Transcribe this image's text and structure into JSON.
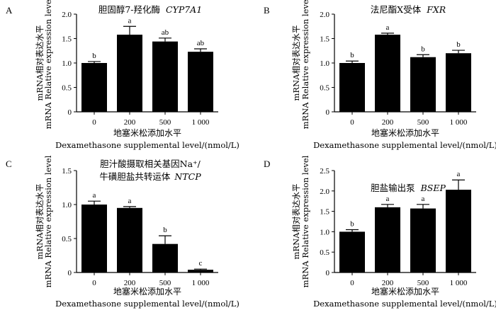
{
  "chart_data": [
    {
      "type": "bar",
      "panel": "A",
      "title_zh": "胆固醇7-羟化酶",
      "title_gene": "CYP7A1",
      "title_line2": "",
      "ylabel_zh": "mRNA相对表达水平",
      "ylabel_en": "mRNA Relative expression level",
      "xlabel_zh": "地塞米松添加水平",
      "xlabel_en": "Dexamethasone supplemental level/(nmol/L)",
      "categories": [
        "0",
        "200",
        "500",
        "1 000"
      ],
      "values": [
        1.0,
        1.58,
        1.44,
        1.23
      ],
      "errors": [
        0.03,
        0.17,
        0.07,
        0.06
      ],
      "significance": [
        "b",
        "a",
        "ab",
        "ab"
      ],
      "ylim": [
        0,
        2.0
      ],
      "yticks": [
        "0",
        "0.5",
        "1.0",
        "1.5",
        "2.0"
      ]
    },
    {
      "type": "bar",
      "panel": "B",
      "title_zh": "法尼酯X受体",
      "title_gene": "FXR",
      "title_line2": "",
      "ylabel_zh": "mRNA相对表达水平",
      "ylabel_en": "mRNA Relative expression level",
      "xlabel_zh": "地塞米松添加水平",
      "xlabel_en": "Dexamethasone supplemental level/(nmol/L)",
      "categories": [
        "0",
        "200",
        "500",
        "1 000"
      ],
      "values": [
        1.0,
        1.58,
        1.12,
        1.2
      ],
      "errors": [
        0.04,
        0.03,
        0.05,
        0.06
      ],
      "significance": [
        "b",
        "a",
        "b",
        "b"
      ],
      "ylim": [
        0,
        2.0
      ],
      "yticks": [
        "0",
        "0.5",
        "1.0",
        "1.5",
        "2.0"
      ]
    },
    {
      "type": "bar",
      "panel": "C",
      "title_zh": "胆汁酸摄取相关基因Na⁺/",
      "title_gene": "NTCP",
      "title_line2": "牛磺胆盐共转运体",
      "ylabel_zh": "mRNA相对表达水平",
      "ylabel_en": "mRNA Relative expression level",
      "xlabel_zh": "地塞米松添加水平",
      "xlabel_en": "Dexamethasone supplemental level/(nmol/L)",
      "categories": [
        "0",
        "200",
        "500",
        "1 000"
      ],
      "values": [
        1.0,
        0.95,
        0.42,
        0.04
      ],
      "errors": [
        0.05,
        0.02,
        0.12,
        0.01
      ],
      "significance": [
        "a",
        "a",
        "b",
        "c"
      ],
      "ylim": [
        0,
        1.5
      ],
      "yticks": [
        "0",
        "0.5",
        "1.0",
        "1.5"
      ]
    },
    {
      "type": "bar",
      "panel": "D",
      "title_zh": "胆盐输出泵",
      "title_gene": "BSEP",
      "title_line2": "",
      "ylabel_zh": "mRNA相对表达水平",
      "ylabel_en": "mRNA Relative expression level",
      "xlabel_zh": "地塞米松添加水平",
      "xlabel_en": "Dexamethasone supplemental level/(nmol/L)",
      "categories": [
        "0",
        "200",
        "500",
        "1 000"
      ],
      "values": [
        1.0,
        1.6,
        1.57,
        2.03
      ],
      "errors": [
        0.05,
        0.07,
        0.1,
        0.24
      ],
      "significance": [
        "b",
        "a",
        "a",
        "a"
      ],
      "ylim": [
        0,
        2.5
      ],
      "yticks": [
        "0",
        "0.5",
        "1.0",
        "1.5",
        "2.0",
        "2.5"
      ]
    }
  ]
}
